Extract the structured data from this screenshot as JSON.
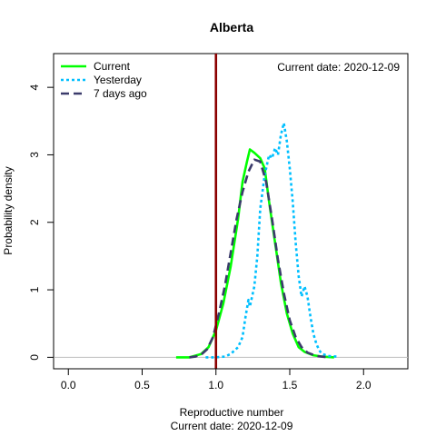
{
  "chart_data": {
    "type": "line",
    "title": "Alberta",
    "xlabel": "Reproductive number",
    "xlabel_sub": "Current date:  2020-12-09",
    "ylabel": "Probability density",
    "annotation": "Current date:  2020-12-09",
    "xlim": [
      -0.1,
      2.3
    ],
    "ylim": [
      -0.17,
      4.5
    ],
    "x_ticks": [
      0,
      0.5,
      1,
      1.5,
      2
    ],
    "x_tick_labels": [
      "0.0",
      "0.5",
      "1.0",
      "1.5",
      "2.0"
    ],
    "y_ticks": [
      0,
      1,
      2,
      3,
      4
    ],
    "y_tick_labels": [
      "0",
      "1",
      "2",
      "3",
      "4"
    ],
    "reference_line": {
      "x": 1.0,
      "color": "#8b0000"
    },
    "baseline": {
      "y": 0,
      "color": "#bebebe"
    },
    "legend_position": "top-left",
    "series": [
      {
        "name": "Current",
        "color": "#00ff00",
        "dash": "solid",
        "points": [
          [
            0.73,
            0
          ],
          [
            0.82,
            0
          ],
          [
            0.9,
            0.05
          ],
          [
            0.95,
            0.15
          ],
          [
            1.0,
            0.4
          ],
          [
            1.05,
            0.8
          ],
          [
            1.1,
            1.35
          ],
          [
            1.15,
            2.05
          ],
          [
            1.18,
            2.6
          ],
          [
            1.21,
            2.9
          ],
          [
            1.23,
            3.08
          ],
          [
            1.26,
            3.03
          ],
          [
            1.3,
            2.95
          ],
          [
            1.33,
            2.8
          ],
          [
            1.36,
            2.3
          ],
          [
            1.4,
            1.7
          ],
          [
            1.44,
            1.1
          ],
          [
            1.48,
            0.65
          ],
          [
            1.52,
            0.35
          ],
          [
            1.56,
            0.15
          ],
          [
            1.6,
            0.08
          ],
          [
            1.66,
            0.03
          ],
          [
            1.72,
            0.01
          ],
          [
            1.8,
            0
          ]
        ]
      },
      {
        "name": "Yesterday",
        "color": "#00bfff",
        "dash": "dotted",
        "points": [
          [
            0.93,
            0
          ],
          [
            1.0,
            0
          ],
          [
            1.06,
            0.01
          ],
          [
            1.1,
            0.05
          ],
          [
            1.15,
            0.15
          ],
          [
            1.18,
            0.3
          ],
          [
            1.2,
            0.6
          ],
          [
            1.22,
            0.85
          ],
          [
            1.23,
            0.75
          ],
          [
            1.26,
            1.05
          ],
          [
            1.28,
            1.5
          ],
          [
            1.3,
            2.2
          ],
          [
            1.33,
            2.7
          ],
          [
            1.36,
            3.0
          ],
          [
            1.38,
            2.95
          ],
          [
            1.4,
            3.1
          ],
          [
            1.42,
            3.0
          ],
          [
            1.44,
            3.3
          ],
          [
            1.46,
            3.47
          ],
          [
            1.48,
            3.2
          ],
          [
            1.5,
            2.8
          ],
          [
            1.52,
            2.3
          ],
          [
            1.54,
            1.7
          ],
          [
            1.56,
            1.2
          ],
          [
            1.58,
            0.9
          ],
          [
            1.6,
            1.05
          ],
          [
            1.62,
            0.9
          ],
          [
            1.64,
            0.6
          ],
          [
            1.66,
            0.35
          ],
          [
            1.68,
            0.2
          ],
          [
            1.7,
            0.1
          ],
          [
            1.72,
            0.05
          ],
          [
            1.76,
            0.02
          ],
          [
            1.82,
            0.01
          ]
        ]
      },
      {
        "name": "7 days ago",
        "color": "#3b3b6b",
        "dash": "dashed",
        "points": [
          [
            0.82,
            0
          ],
          [
            0.86,
            0.01
          ],
          [
            0.9,
            0.04
          ],
          [
            0.94,
            0.12
          ],
          [
            0.98,
            0.3
          ],
          [
            1.02,
            0.65
          ],
          [
            1.06,
            1.05
          ],
          [
            1.1,
            1.55
          ],
          [
            1.14,
            2.05
          ],
          [
            1.18,
            2.45
          ],
          [
            1.22,
            2.75
          ],
          [
            1.26,
            2.93
          ],
          [
            1.3,
            2.9
          ],
          [
            1.34,
            2.6
          ],
          [
            1.38,
            2.05
          ],
          [
            1.42,
            1.45
          ],
          [
            1.46,
            0.95
          ],
          [
            1.5,
            0.55
          ],
          [
            1.54,
            0.3
          ],
          [
            1.58,
            0.15
          ],
          [
            1.62,
            0.07
          ],
          [
            1.68,
            0.02
          ],
          [
            1.76,
            0
          ]
        ]
      }
    ]
  }
}
